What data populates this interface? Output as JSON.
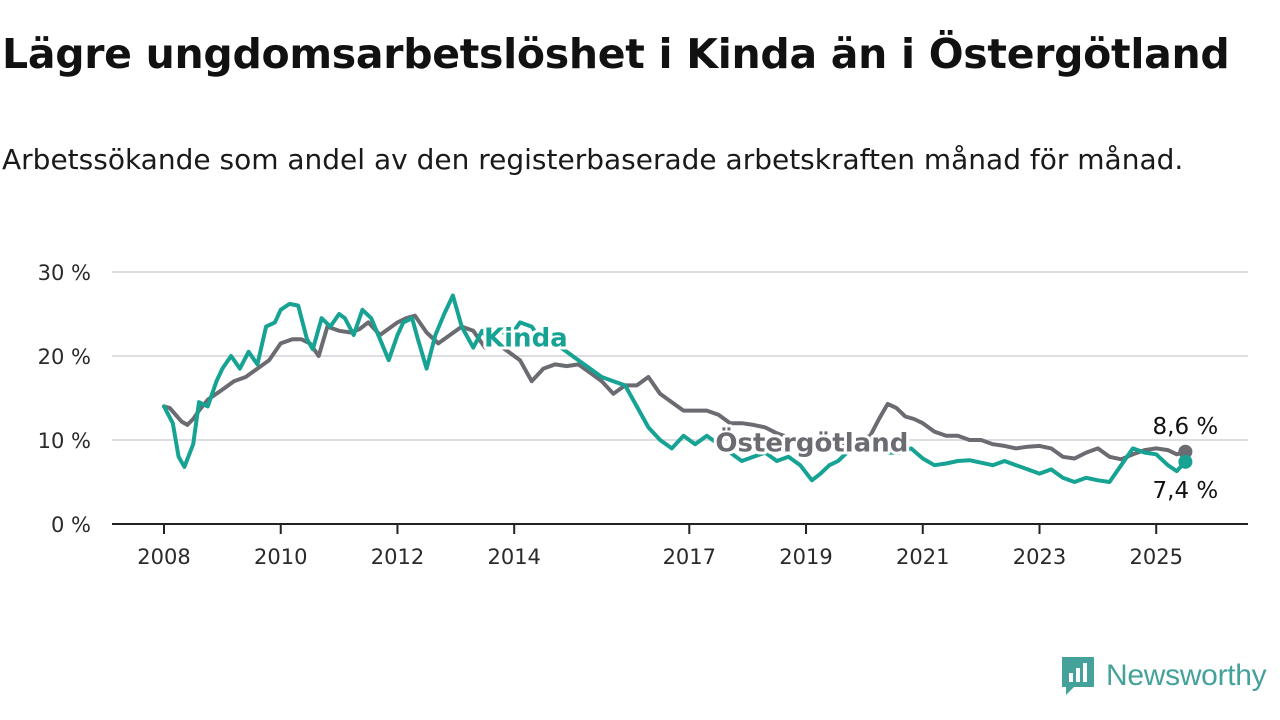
{
  "title": "Lägre ungdomsarbetslöshet i Kinda än i Östergötland",
  "subtitle": "Arbetssökande som andel av den registerbaserade arbetskraften månad för månad.",
  "brand": {
    "name": "Newsworthy",
    "icon": "newsworthy-logo-icon",
    "color": "#45a29b"
  },
  "chart_data": {
    "type": "line",
    "xlim": [
      2008,
      2025.75
    ],
    "ylim": [
      0,
      30
    ],
    "y_ticks": [
      0,
      10,
      20,
      30
    ],
    "y_tick_labels": [
      "0 %",
      "10 %",
      "20 %",
      "30 %"
    ],
    "x_ticks": [
      2008,
      2010,
      2012,
      2014,
      2017,
      2019,
      2021,
      2023,
      2025
    ],
    "x_tick_labels": [
      "2008",
      "2010",
      "2012",
      "2014",
      "2017",
      "2019",
      "2021",
      "2023",
      "2025"
    ],
    "grid": true,
    "legend": "none (direct labels)",
    "series": [
      {
        "name": "Östergötland",
        "color": "#6b6b72",
        "end_label": "8,6 %",
        "x": [
          2008.0,
          2008.1,
          2008.2,
          2008.3,
          2008.4,
          2008.5,
          2008.6,
          2008.75,
          2009.0,
          2009.2,
          2009.4,
          2009.6,
          2009.8,
          2010.0,
          2010.2,
          2010.35,
          2010.5,
          2010.65,
          2010.8,
          2011.0,
          2011.2,
          2011.35,
          2011.5,
          2011.7,
          2011.9,
          2012.0,
          2012.15,
          2012.3,
          2012.5,
          2012.7,
          2012.9,
          2013.1,
          2013.3,
          2013.5,
          2013.7,
          2013.9,
          2014.1,
          2014.3,
          2014.5,
          2014.7,
          2014.9,
          2015.1,
          2015.3,
          2015.5,
          2015.7,
          2015.9,
          2016.1,
          2016.3,
          2016.5,
          2016.7,
          2016.9,
          2017.1,
          2017.3,
          2017.5,
          2017.7,
          2017.9,
          2018.1,
          2018.3,
          2018.5,
          2018.7,
          2018.9,
          2019.1,
          2019.3,
          2019.5,
          2019.7,
          2019.9,
          2020.1,
          2020.25,
          2020.4,
          2020.55,
          2020.7,
          2020.85,
          2021.0,
          2021.2,
          2021.4,
          2021.6,
          2021.8,
          2022.0,
          2022.2,
          2022.4,
          2022.6,
          2022.8,
          2023.0,
          2023.2,
          2023.4,
          2023.6,
          2023.8,
          2024.0,
          2024.2,
          2024.4,
          2024.6,
          2024.8,
          2025.0,
          2025.2,
          2025.35,
          2025.5
        ],
        "y": [
          14.0,
          13.8,
          13.0,
          12.2,
          11.8,
          12.5,
          13.5,
          14.8,
          16.0,
          17.0,
          17.5,
          18.5,
          19.5,
          21.5,
          22.0,
          22.0,
          21.5,
          20.0,
          23.5,
          23.0,
          22.8,
          23.2,
          24.0,
          22.5,
          23.5,
          24.0,
          24.5,
          24.8,
          22.8,
          21.5,
          22.5,
          23.5,
          23.0,
          21.0,
          21.5,
          20.5,
          19.5,
          17.0,
          18.5,
          19.0,
          18.8,
          19.0,
          18.0,
          17.0,
          15.5,
          16.5,
          16.5,
          17.5,
          15.5,
          14.5,
          13.5,
          13.5,
          13.5,
          13.0,
          12.0,
          12.0,
          11.8,
          11.5,
          10.8,
          10.3,
          10.2,
          9.8,
          9.5,
          9.3,
          9.8,
          10.0,
          10.5,
          12.5,
          14.3,
          13.8,
          12.8,
          12.5,
          12.0,
          11.0,
          10.5,
          10.5,
          10.0,
          10.0,
          9.5,
          9.3,
          9.0,
          9.2,
          9.3,
          9.0,
          8.0,
          7.8,
          8.5,
          9.0,
          8.0,
          7.7,
          8.3,
          8.8,
          9.0,
          8.8,
          8.3,
          8.6
        ]
      },
      {
        "name": "Kinda",
        "color": "#17a393",
        "end_label": "7,4 %",
        "x": [
          2008.0,
          2008.15,
          2008.25,
          2008.35,
          2008.5,
          2008.6,
          2008.75,
          2008.9,
          2009.0,
          2009.15,
          2009.3,
          2009.45,
          2009.6,
          2009.75,
          2009.9,
          2010.0,
          2010.15,
          2010.3,
          2010.45,
          2010.55,
          2010.7,
          2010.85,
          2011.0,
          2011.1,
          2011.25,
          2011.4,
          2011.55,
          2011.7,
          2011.85,
          2012.0,
          2012.1,
          2012.25,
          2012.35,
          2012.5,
          2012.65,
          2012.8,
          2012.95,
          2013.1,
          2013.3,
          2013.45,
          2013.6,
          2013.75,
          2013.9,
          2014.1,
          2014.3,
          2014.5,
          2014.7,
          2014.9,
          2015.1,
          2015.3,
          2015.5,
          2015.7,
          2015.9,
          2016.1,
          2016.3,
          2016.5,
          2016.7,
          2016.9,
          2017.1,
          2017.3,
          2017.5,
          2017.7,
          2017.9,
          2018.1,
          2018.3,
          2018.5,
          2018.7,
          2018.9,
          2019.1,
          2019.25,
          2019.4,
          2019.55,
          2019.7,
          2019.85,
          2020.0,
          2020.2,
          2020.4,
          2020.6,
          2020.8,
          2021.0,
          2021.2,
          2021.4,
          2021.6,
          2021.8,
          2022.0,
          2022.2,
          2022.4,
          2022.6,
          2022.8,
          2023.0,
          2023.2,
          2023.4,
          2023.6,
          2023.8,
          2024.0,
          2024.2,
          2024.4,
          2024.6,
          2024.8,
          2025.0,
          2025.2,
          2025.35,
          2025.5
        ],
        "y": [
          14.0,
          12.0,
          8.0,
          6.8,
          9.5,
          14.5,
          14.0,
          17.0,
          18.5,
          20.0,
          18.5,
          20.5,
          19.0,
          23.5,
          24.0,
          25.5,
          26.2,
          26.0,
          22.0,
          20.8,
          24.5,
          23.5,
          25.0,
          24.5,
          22.5,
          25.5,
          24.5,
          22.0,
          19.5,
          22.5,
          24.0,
          24.5,
          22.0,
          18.5,
          22.5,
          25.0,
          27.2,
          23.5,
          21.0,
          23.0,
          21.5,
          23.5,
          22.0,
          24.0,
          23.5,
          21.5,
          21.5,
          20.5,
          19.5,
          18.5,
          17.5,
          17.0,
          16.5,
          14.0,
          11.5,
          10.0,
          9.0,
          10.5,
          9.5,
          10.5,
          9.5,
          8.5,
          7.5,
          8.0,
          8.5,
          7.5,
          8.0,
          7.0,
          5.2,
          6.0,
          7.0,
          7.5,
          8.5,
          9.0,
          9.5,
          8.8,
          8.5,
          8.5,
          9.0,
          7.8,
          7.0,
          7.2,
          7.5,
          7.6,
          7.3,
          7.0,
          7.5,
          7.0,
          6.5,
          6.0,
          6.5,
          5.5,
          5.0,
          5.5,
          5.2,
          5.0,
          7.0,
          9.0,
          8.5,
          8.3,
          7.0,
          6.3,
          7.4
        ]
      }
    ],
    "direct_labels": [
      {
        "series": "Kinda",
        "text": "Kinda",
        "x": 2014.2,
        "y": 22.2
      },
      {
        "series": "Östergötland",
        "text": "Östergötland",
        "x": 2019.1,
        "y": 9.7
      }
    ]
  }
}
